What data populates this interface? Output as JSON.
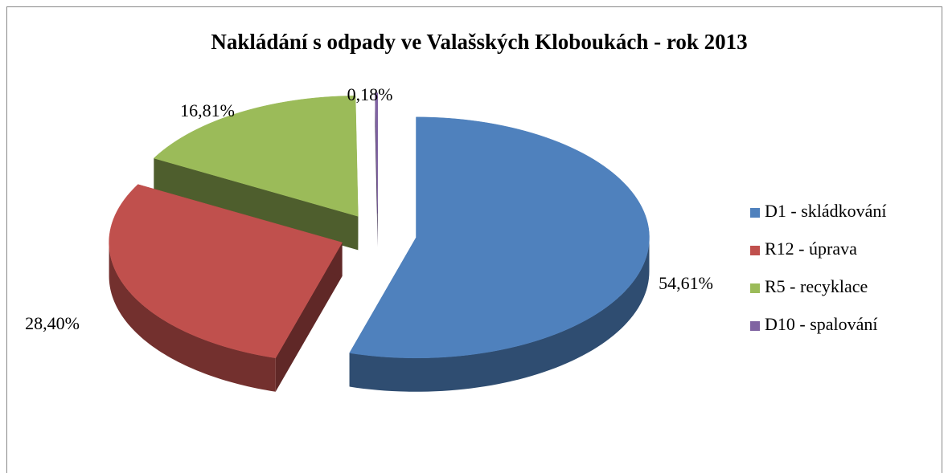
{
  "chart_data": {
    "type": "pie",
    "title": "Nakládání s odpady ve Valašských Kloboukách - rok 2013",
    "categories": [
      "D1 - skládkování",
      "R12 - úprava",
      "R5 - recyklace",
      "D10 - spalování"
    ],
    "values": [
      54.61,
      28.4,
      16.81,
      0.18
    ],
    "value_labels": [
      "54,61%",
      "28,40%",
      "16,81%",
      "0,18%"
    ],
    "colors": [
      "#4f81bd",
      "#c0504d",
      "#9bbb59",
      "#8064a2"
    ],
    "legend": "right"
  }
}
